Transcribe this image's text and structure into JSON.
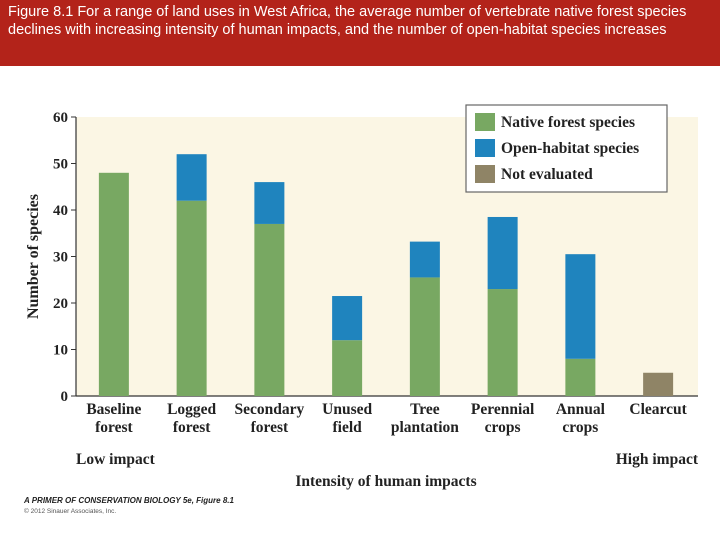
{
  "header": {
    "caption": "Figure 8.1 For a range of land uses in West Africa, the average number of vertebrate native forest species declines with increasing intensity of human impacts, and the number of open-habitat species increases"
  },
  "footer": {
    "source": "A PRIMER OF CONSERVATION BIOLOGY 5e, Figure 8.1",
    "copyright": "© 2012 Sinauer Associates, Inc."
  },
  "colors": {
    "native": "#78a862",
    "open": "#1f84be",
    "not_evaluated": "#8f8466",
    "plot_bg": "#fbf6e4"
  },
  "chart_data": {
    "type": "bar",
    "stacked": true,
    "categories": [
      [
        "Baseline",
        "forest"
      ],
      [
        "Logged",
        "forest"
      ],
      [
        "Secondary",
        "forest"
      ],
      [
        "Unused",
        "field"
      ],
      [
        "Tree",
        "plantation"
      ],
      [
        "Perennial",
        "crops"
      ],
      [
        "Annual",
        "crops"
      ],
      [
        "Clearcut"
      ]
    ],
    "series": [
      {
        "name": "Native forest species",
        "color_key": "native",
        "values": [
          48,
          42,
          37,
          12,
          25.5,
          23,
          8,
          0
        ]
      },
      {
        "name": "Open-habitat species",
        "color_key": "open",
        "values": [
          0,
          10,
          9,
          9.5,
          7.7,
          15.5,
          22.5,
          0
        ]
      },
      {
        "name": "Not evaluated",
        "color_key": "not_evaluated",
        "values": [
          0,
          0,
          0,
          0,
          0,
          0,
          0,
          5
        ]
      }
    ],
    "ylabel": "Number of species",
    "xlabel": "Intensity of human impacts",
    "x_low_label": "Low impact",
    "x_high_label": "High impact",
    "ylim": [
      0,
      60
    ],
    "yticks": [
      0,
      10,
      20,
      30,
      40,
      50,
      60
    ],
    "grid": false,
    "legend_position": "top-right"
  }
}
